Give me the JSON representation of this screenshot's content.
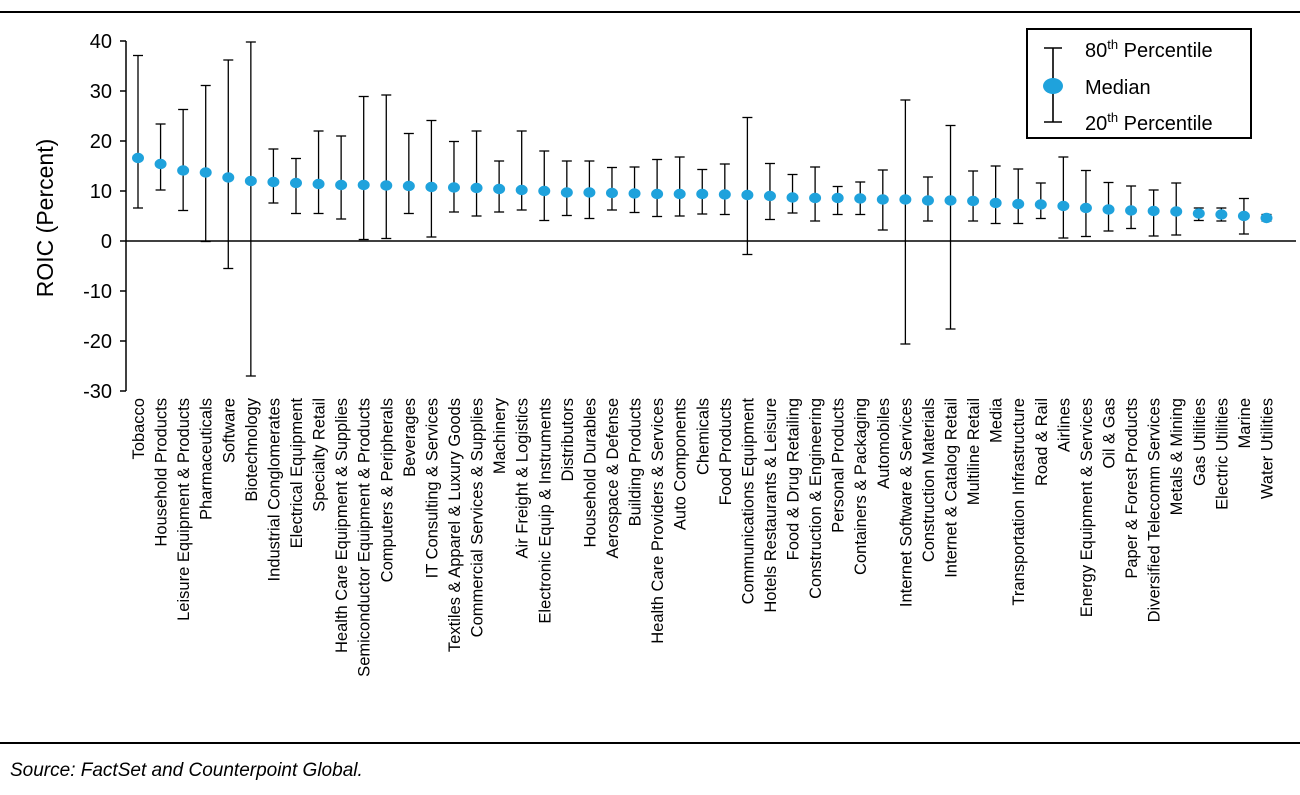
{
  "source": "Source: FactSet and Counterpoint Global.",
  "colors": {
    "median": "#1FA2DC",
    "whisker": "#000000",
    "rule": "#000000"
  },
  "legend": {
    "p80": {
      "main": "80",
      "sup": "th",
      "rest": " Percentile"
    },
    "median": "Median",
    "p20": {
      "main": "20",
      "sup": "th",
      "rest": " Percentile"
    }
  },
  "chart_data": {
    "type": "errorbar",
    "ylabel": "ROIC (Percent)",
    "xlabel": "",
    "ylim": [
      -30,
      40
    ],
    "yticks": [
      -30,
      -20,
      -10,
      0,
      10,
      20,
      30,
      40
    ],
    "legend_position": "top-right",
    "grid": false,
    "categories": [
      "Tobacco",
      "Household Products",
      "Leisure Equipment & Products",
      "Pharmaceuticals",
      "Software",
      "Biotechnology",
      "Industrial Conglomerates",
      "Electrical Equipment",
      "Specialty Retail",
      "Health Care Equipment & Supplies",
      "Semiconductor Equipment & Products",
      "Computers & Peripherals",
      "Beverages",
      "IT Consulting & Services",
      "Textiles & Apparel & Luxury Goods",
      "Commercial Services & Supplies",
      "Machinery",
      "Air Freight & Logistics",
      "Electronic Equip & Instruments",
      "Distributors",
      "Household Durables",
      "Aerospace & Defense",
      "Building Products",
      "Health Care Providers & Services",
      "Auto Components",
      "Chemicals",
      "Food Products",
      "Communications Equipment",
      "Hotels Restaurants & Leisure",
      "Food & Drug Retailing",
      "Construction & Engineering",
      "Personal Products",
      "Containers & Packaging",
      "Automobiles",
      "Internet Software & Services",
      "Construction Materials",
      "Internet & Catalog Retail",
      "Multiline Retail",
      "Media",
      "Transportation Infrastructure",
      "Road & Rail",
      "Airlines",
      "Energy Equipment & Services",
      "Oil & Gas",
      "Paper & Forest Products",
      "Diversified Telecomm Services",
      "Metals & Mining",
      "Gas Utilities",
      "Electric Utilities",
      "Marine",
      "Water Utilities"
    ],
    "series": [
      {
        "name": "Median",
        "values": [
          16.6,
          15.4,
          14.1,
          13.7,
          12.7,
          12.0,
          11.8,
          11.6,
          11.4,
          11.2,
          11.2,
          11.1,
          11.0,
          10.8,
          10.7,
          10.6,
          10.4,
          10.2,
          10.0,
          9.7,
          9.7,
          9.6,
          9.5,
          9.4,
          9.4,
          9.4,
          9.3,
          9.2,
          9.0,
          8.7,
          8.6,
          8.6,
          8.5,
          8.3,
          8.3,
          8.1,
          8.1,
          8.0,
          7.6,
          7.4,
          7.3,
          7.0,
          6.6,
          6.3,
          6.1,
          6.0,
          5.9,
          5.5,
          5.3,
          5.0,
          4.6
        ]
      },
      {
        "name": "80th Percentile",
        "values": [
          37.1,
          23.4,
          26.3,
          31.1,
          36.2,
          39.8,
          18.4,
          16.5,
          22.0,
          21.0,
          28.9,
          29.2,
          21.5,
          24.1,
          19.9,
          22.0,
          16.0,
          22.0,
          18.0,
          16.0,
          16.0,
          14.7,
          14.8,
          16.3,
          16.8,
          14.3,
          15.4,
          24.7,
          15.5,
          13.3,
          14.8,
          10.9,
          11.8,
          14.2,
          28.2,
          12.8,
          23.1,
          14.0,
          15.0,
          14.4,
          11.6,
          16.8,
          14.1,
          11.7,
          11.0,
          10.2,
          11.6,
          6.6,
          6.6,
          8.5,
          5.3
        ]
      },
      {
        "name": "20th Percentile",
        "values": [
          6.6,
          10.2,
          6.1,
          -0.1,
          -5.5,
          -27.0,
          7.6,
          5.5,
          5.5,
          4.4,
          0.3,
          0.5,
          5.5,
          0.8,
          5.8,
          5.0,
          5.8,
          6.2,
          4.1,
          5.1,
          4.5,
          6.2,
          5.7,
          4.9,
          5.0,
          5.4,
          5.3,
          -2.7,
          4.3,
          5.6,
          4.0,
          5.3,
          5.3,
          2.2,
          -20.6,
          4.0,
          -17.6,
          4.0,
          3.5,
          3.5,
          4.5,
          0.6,
          0.9,
          2.0,
          2.5,
          1.0,
          1.2,
          4.1,
          4.0,
          1.4,
          4.0
        ]
      }
    ]
  }
}
